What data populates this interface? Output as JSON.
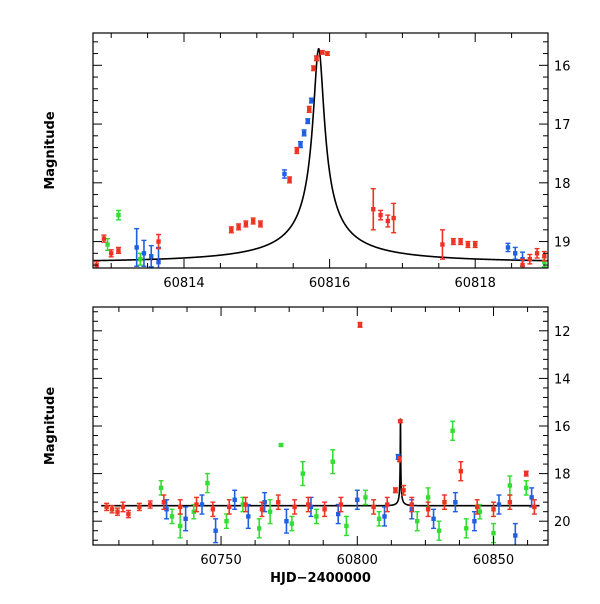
{
  "colors": {
    "green": "#33dd33",
    "blue": "#1f5fe0",
    "red": "#ee3322",
    "curve": "#000000"
  },
  "chart_data": [
    {
      "type": "scatter",
      "xlabel": "",
      "ylabel": "Magnitude",
      "xlim": [
        60812.75,
        60819.0
      ],
      "ylim": [
        19.45,
        15.45
      ],
      "y_inverted": true,
      "x_ticks": [
        60814,
        60816,
        60818
      ],
      "x_tick_labels": [
        "60814",
        "60816",
        "60818"
      ],
      "y_ticks": [
        16,
        17,
        18,
        19
      ],
      "y_tick_labels": [
        "16",
        "17",
        "18",
        "19"
      ],
      "grid": false,
      "model_curve": {
        "t0": 60815.85,
        "peak": 15.72,
        "baseline": 19.35,
        "u0": 0.027,
        "tE": 2.7
      },
      "series": [
        {
          "color": "green",
          "points": [
            {
              "x": 60813.1,
              "y": 18.55,
              "err": 0.08
            },
            {
              "x": 60812.95,
              "y": 19.05,
              "err": 0.1
            },
            {
              "x": 60813.4,
              "y": 19.3,
              "err": 0.1
            },
            {
              "x": 60818.95,
              "y": 19.35,
              "err": 0.08
            }
          ]
        },
        {
          "color": "blue",
          "points": [
            {
              "x": 60813.35,
              "y": 19.1,
              "err": 0.32
            },
            {
              "x": 60813.45,
              "y": 19.2,
              "err": 0.22
            },
            {
              "x": 60813.55,
              "y": 19.25,
              "err": 0.18
            },
            {
              "x": 60813.65,
              "y": 19.35,
              "err": 0.25
            },
            {
              "x": 60815.38,
              "y": 17.85,
              "err": 0.07
            },
            {
              "x": 60815.6,
              "y": 17.35,
              "err": 0.05
            },
            {
              "x": 60815.65,
              "y": 17.15,
              "err": 0.05
            },
            {
              "x": 60815.7,
              "y": 16.95,
              "err": 0.04
            },
            {
              "x": 60815.75,
              "y": 16.6,
              "err": 0.04
            },
            {
              "x": 60818.45,
              "y": 19.1,
              "err": 0.07
            },
            {
              "x": 60818.55,
              "y": 19.2,
              "err": 0.1
            },
            {
              "x": 60818.65,
              "y": 19.3,
              "err": 0.12
            }
          ]
        },
        {
          "color": "red",
          "points": [
            {
              "x": 60812.8,
              "y": 19.4,
              "err": 0.06
            },
            {
              "x": 60812.9,
              "y": 18.95,
              "err": 0.06
            },
            {
              "x": 60813.0,
              "y": 19.2,
              "err": 0.06
            },
            {
              "x": 60813.1,
              "y": 19.15,
              "err": 0.05
            },
            {
              "x": 60813.65,
              "y": 19.0,
              "err": 0.12
            },
            {
              "x": 60814.65,
              "y": 18.8,
              "err": 0.05
            },
            {
              "x": 60814.75,
              "y": 18.75,
              "err": 0.05
            },
            {
              "x": 60814.85,
              "y": 18.7,
              "err": 0.05
            },
            {
              "x": 60814.95,
              "y": 18.65,
              "err": 0.05
            },
            {
              "x": 60815.05,
              "y": 18.7,
              "err": 0.05
            },
            {
              "x": 60815.45,
              "y": 17.95,
              "err": 0.05
            },
            {
              "x": 60815.55,
              "y": 17.45,
              "err": 0.05
            },
            {
              "x": 60815.72,
              "y": 16.75,
              "err": 0.05
            },
            {
              "x": 60815.78,
              "y": 16.05,
              "err": 0.04
            },
            {
              "x": 60815.82,
              "y": 15.88,
              "err": 0.04
            },
            {
              "x": 60815.9,
              "y": 15.78,
              "err": 0.03
            },
            {
              "x": 60815.97,
              "y": 15.8,
              "err": 0.03
            },
            {
              "x": 60816.6,
              "y": 18.45,
              "err": 0.35
            },
            {
              "x": 60816.7,
              "y": 18.55,
              "err": 0.08
            },
            {
              "x": 60816.8,
              "y": 18.65,
              "err": 0.1
            },
            {
              "x": 60816.88,
              "y": 18.6,
              "err": 0.25
            },
            {
              "x": 60817.55,
              "y": 19.05,
              "err": 0.25
            },
            {
              "x": 60817.7,
              "y": 19.0,
              "err": 0.05
            },
            {
              "x": 60817.8,
              "y": 19.0,
              "err": 0.05
            },
            {
              "x": 60817.9,
              "y": 19.05,
              "err": 0.05
            },
            {
              "x": 60818.0,
              "y": 19.05,
              "err": 0.05
            },
            {
              "x": 60818.65,
              "y": 19.4,
              "err": 0.1
            },
            {
              "x": 60818.75,
              "y": 19.3,
              "err": 0.08
            },
            {
              "x": 60818.85,
              "y": 19.2,
              "err": 0.08
            },
            {
              "x": 60818.95,
              "y": 19.25,
              "err": 0.08
            }
          ]
        }
      ]
    },
    {
      "type": "scatter",
      "xlabel": "HJD−2400000",
      "ylabel": "Magnitude",
      "xlim": [
        60703,
        60870
      ],
      "ylim": [
        21.0,
        11.0
      ],
      "y_inverted": true,
      "x_ticks": [
        60750,
        60800,
        60850
      ],
      "x_tick_labels": [
        "60750",
        "60800",
        "60850"
      ],
      "y_ticks": [
        12,
        14,
        16,
        18,
        20
      ],
      "y_tick_labels": [
        "12",
        "14",
        "16",
        "18",
        "20"
      ],
      "grid": false,
      "model_curve": {
        "t0": 60815.85,
        "peak": 15.72,
        "baseline": 19.35,
        "u0": 0.027,
        "tE": 2.7,
        "x_from": 60706,
        "x_to": 60867
      },
      "series": [
        {
          "color": "green",
          "points": [
            {
              "x": 60728,
              "y": 18.6,
              "err": 0.3
            },
            {
              "x": 60732,
              "y": 19.8,
              "err": 0.3
            },
            {
              "x": 60735,
              "y": 20.2,
              "err": 0.5
            },
            {
              "x": 60740,
              "y": 19.6,
              "err": 0.3
            },
            {
              "x": 60745,
              "y": 18.4,
              "err": 0.4
            },
            {
              "x": 60752,
              "y": 20.0,
              "err": 0.3
            },
            {
              "x": 60758,
              "y": 19.3,
              "err": 0.3
            },
            {
              "x": 60764,
              "y": 20.3,
              "err": 0.4
            },
            {
              "x": 60768,
              "y": 19.6,
              "err": 0.5
            },
            {
              "x": 60772,
              "y": 16.8,
              "err": 0.05
            },
            {
              "x": 60776,
              "y": 20.1,
              "err": 0.3
            },
            {
              "x": 60780,
              "y": 18.0,
              "err": 0.5
            },
            {
              "x": 60785,
              "y": 19.8,
              "err": 0.3
            },
            {
              "x": 60791,
              "y": 17.5,
              "err": 0.5
            },
            {
              "x": 60796,
              "y": 20.2,
              "err": 0.4
            },
            {
              "x": 60803,
              "y": 19.0,
              "err": 0.3
            },
            {
              "x": 60808,
              "y": 19.9,
              "err": 0.3
            },
            {
              "x": 60822,
              "y": 20.0,
              "err": 0.4
            },
            {
              "x": 60826,
              "y": 19.0,
              "err": 0.4
            },
            {
              "x": 60830,
              "y": 20.4,
              "err": 0.4
            },
            {
              "x": 60835,
              "y": 16.2,
              "err": 0.4
            },
            {
              "x": 60840,
              "y": 20.3,
              "err": 0.4
            },
            {
              "x": 60845,
              "y": 19.6,
              "err": 0.3
            },
            {
              "x": 60850,
              "y": 20.5,
              "err": 0.4
            },
            {
              "x": 60856,
              "y": 18.5,
              "err": 0.4
            },
            {
              "x": 60862,
              "y": 18.6,
              "err": 0.3
            }
          ]
        },
        {
          "color": "blue",
          "points": [
            {
              "x": 60730,
              "y": 19.5,
              "err": 0.4
            },
            {
              "x": 60737,
              "y": 19.9,
              "err": 0.5
            },
            {
              "x": 60743,
              "y": 19.3,
              "err": 0.4
            },
            {
              "x": 60748,
              "y": 20.4,
              "err": 0.5
            },
            {
              "x": 60755,
              "y": 19.1,
              "err": 0.4
            },
            {
              "x": 60760,
              "y": 19.8,
              "err": 0.5
            },
            {
              "x": 60766,
              "y": 19.2,
              "err": 0.4
            },
            {
              "x": 60774,
              "y": 20.0,
              "err": 0.5
            },
            {
              "x": 60783,
              "y": 19.4,
              "err": 0.4
            },
            {
              "x": 60793,
              "y": 19.7,
              "err": 0.4
            },
            {
              "x": 60800,
              "y": 19.1,
              "err": 0.4
            },
            {
              "x": 60810,
              "y": 19.8,
              "err": 0.4
            },
            {
              "x": 60815,
              "y": 17.3,
              "err": 0.1
            },
            {
              "x": 60820,
              "y": 19.5,
              "err": 0.4
            },
            {
              "x": 60828,
              "y": 19.9,
              "err": 0.4
            },
            {
              "x": 60836,
              "y": 19.2,
              "err": 0.4
            },
            {
              "x": 60843,
              "y": 20.0,
              "err": 0.4
            },
            {
              "x": 60852,
              "y": 19.3,
              "err": 0.4
            },
            {
              "x": 60858,
              "y": 20.6,
              "err": 0.5
            },
            {
              "x": 60864,
              "y": 19.0,
              "err": 0.4
            }
          ]
        },
        {
          "color": "red",
          "points": [
            {
              "x": 60708,
              "y": 19.4,
              "err": 0.15
            },
            {
              "x": 60710,
              "y": 19.5,
              "err": 0.15
            },
            {
              "x": 60712,
              "y": 19.6,
              "err": 0.15
            },
            {
              "x": 60714,
              "y": 19.4,
              "err": 0.2
            },
            {
              "x": 60716,
              "y": 19.7,
              "err": 0.15
            },
            {
              "x": 60720,
              "y": 19.4,
              "err": 0.15
            },
            {
              "x": 60724,
              "y": 19.3,
              "err": 0.15
            },
            {
              "x": 60729,
              "y": 19.2,
              "err": 0.3
            },
            {
              "x": 60735,
              "y": 19.4,
              "err": 0.3
            },
            {
              "x": 60741,
              "y": 19.3,
              "err": 0.3
            },
            {
              "x": 60747,
              "y": 19.5,
              "err": 0.3
            },
            {
              "x": 60753,
              "y": 19.4,
              "err": 0.3
            },
            {
              "x": 60759,
              "y": 19.3,
              "err": 0.3
            },
            {
              "x": 60765,
              "y": 19.5,
              "err": 0.3
            },
            {
              "x": 60771,
              "y": 19.2,
              "err": 0.3
            },
            {
              "x": 60777,
              "y": 19.4,
              "err": 0.3
            },
            {
              "x": 60782,
              "y": 19.3,
              "err": 0.3
            },
            {
              "x": 60788,
              "y": 19.5,
              "err": 0.3
            },
            {
              "x": 60794,
              "y": 19.3,
              "err": 0.3
            },
            {
              "x": 60801,
              "y": 11.75,
              "err": 0.1
            },
            {
              "x": 60806,
              "y": 19.4,
              "err": 0.3
            },
            {
              "x": 60811,
              "y": 19.3,
              "err": 0.3
            },
            {
              "x": 60814,
              "y": 18.7,
              "err": 0.1
            },
            {
              "x": 60815.5,
              "y": 17.4,
              "err": 0.1
            },
            {
              "x": 60815.8,
              "y": 15.8,
              "err": 0.05
            },
            {
              "x": 60817,
              "y": 18.7,
              "err": 0.2
            },
            {
              "x": 60820,
              "y": 19.3,
              "err": 0.3
            },
            {
              "x": 60826,
              "y": 19.5,
              "err": 0.3
            },
            {
              "x": 60832,
              "y": 19.2,
              "err": 0.3
            },
            {
              "x": 60838,
              "y": 17.9,
              "err": 0.4
            },
            {
              "x": 60844,
              "y": 19.4,
              "err": 0.3
            },
            {
              "x": 60850,
              "y": 19.5,
              "err": 0.3
            },
            {
              "x": 60856,
              "y": 19.2,
              "err": 0.3
            },
            {
              "x": 60862,
              "y": 18.0,
              "err": 0.1
            },
            {
              "x": 60865,
              "y": 19.4,
              "err": 0.3
            }
          ]
        }
      ]
    }
  ]
}
